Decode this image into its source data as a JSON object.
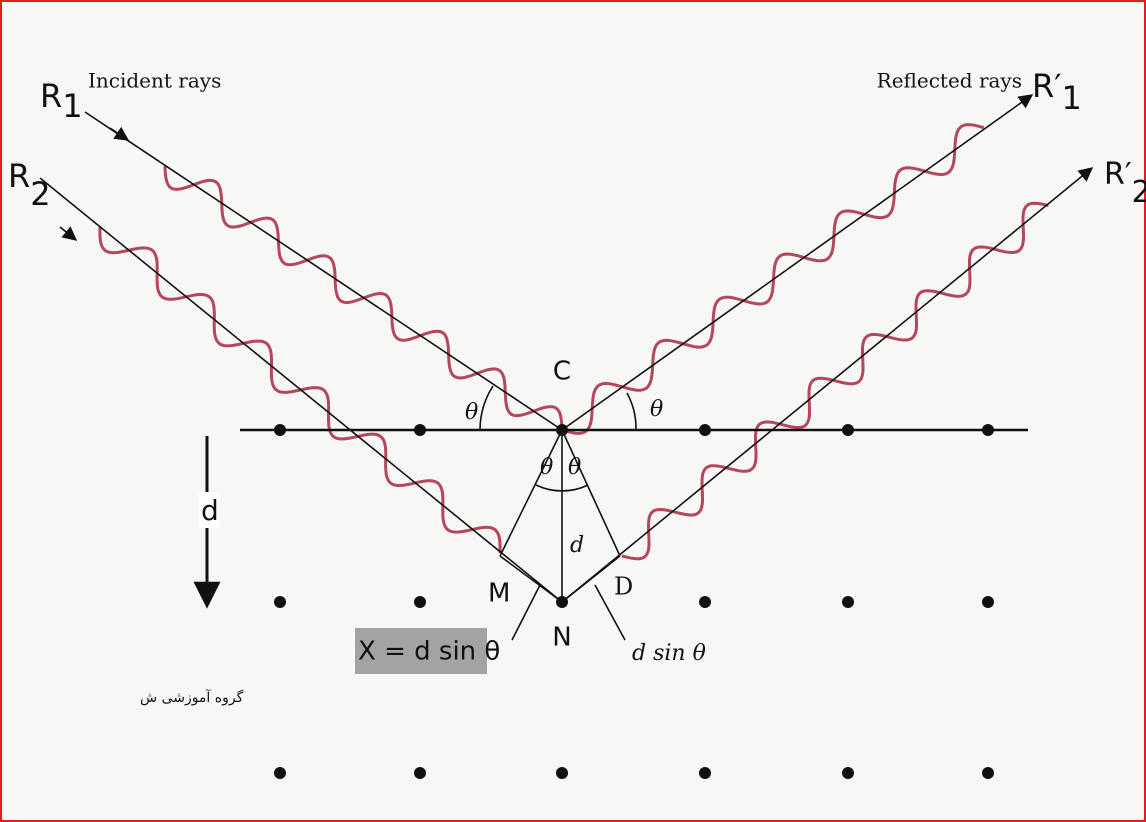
{
  "incident": {
    "title": "Incident rays",
    "rays": [
      {
        "letter": "R",
        "sub": "1"
      },
      {
        "letter": "R",
        "sub": "2"
      }
    ]
  },
  "reflected": {
    "title": "Reflected rays",
    "rays": [
      {
        "letter": "R′",
        "sub": "1"
      },
      {
        "letter": "R′",
        "sub": "2"
      }
    ]
  },
  "points": {
    "C": "C",
    "M": "M",
    "N": "N",
    "D": "D"
  },
  "theta": "θ",
  "spacing": "d",
  "left_spacing": "d",
  "path_difference": "d sin θ",
  "formula": "X = d sin θ",
  "watermark": "گروه آموزشی ش"
}
